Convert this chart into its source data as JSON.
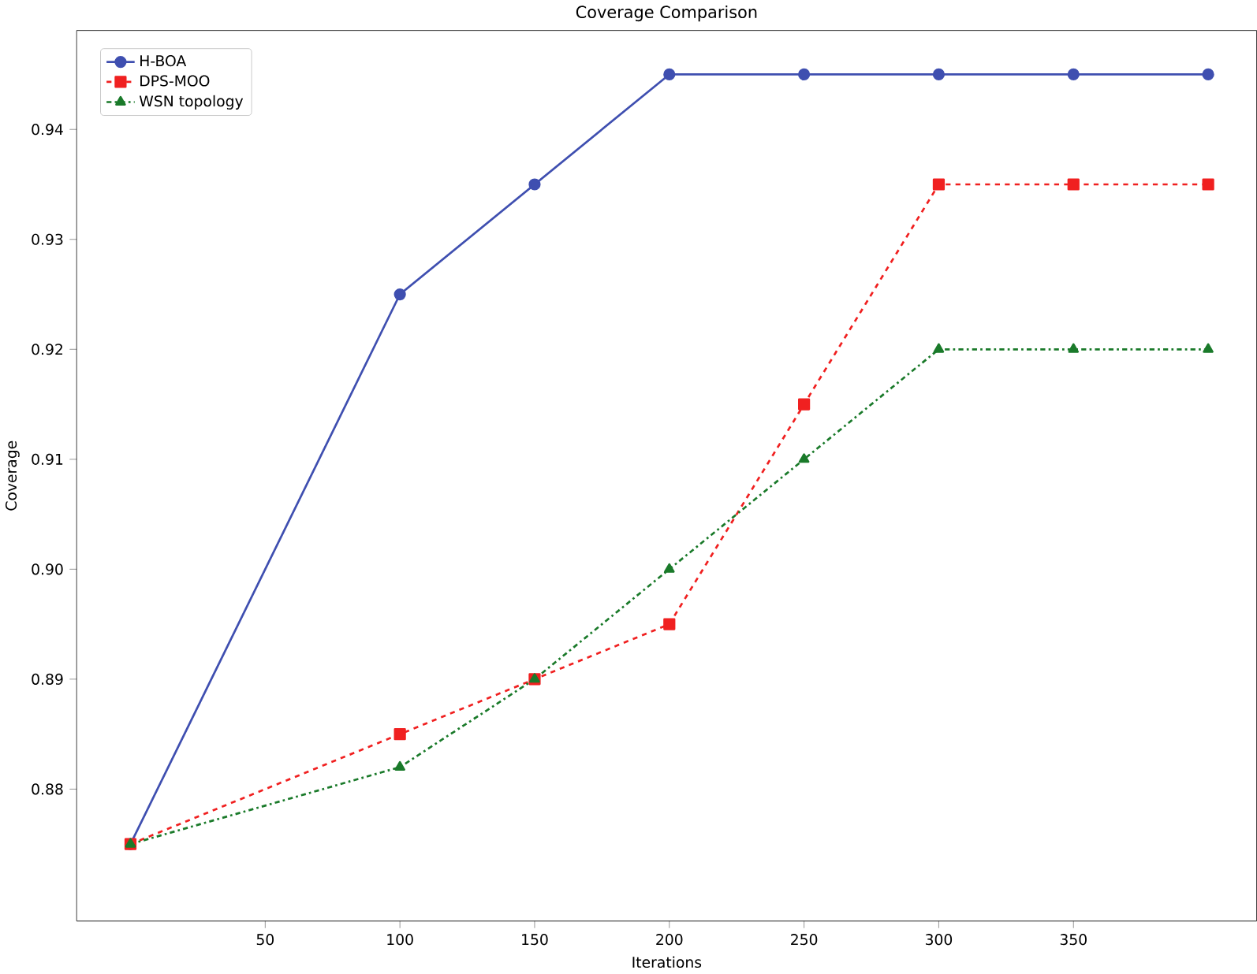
{
  "chart_data": {
    "type": "line",
    "title": "Coverage Comparison",
    "xlabel": "Iterations",
    "ylabel": "Coverage",
    "x": [
      0,
      100,
      150,
      200,
      250,
      300,
      350,
      400
    ],
    "series": [
      {
        "name": "H-BOA",
        "color": "#3f4fb0",
        "marker": "circle",
        "line_style": "solid",
        "values": [
          0.875,
          0.925,
          0.935,
          0.945,
          0.945,
          0.945,
          0.945,
          0.945
        ]
      },
      {
        "name": "DPS-MOO",
        "color": "#f02020",
        "marker": "square",
        "line_style": "dashed",
        "values": [
          0.875,
          0.885,
          0.89,
          0.895,
          0.915,
          0.935,
          0.935,
          0.935
        ]
      },
      {
        "name": "WSN topology",
        "color": "#1a7a2a",
        "marker": "triangle",
        "line_style": "dashdot",
        "values": [
          0.875,
          0.882,
          0.89,
          0.9,
          0.91,
          0.92,
          0.92,
          0.92
        ]
      }
    ],
    "xlim": [
      -20,
      418
    ],
    "ylim": [
      0.868,
      0.949
    ],
    "xticks": [
      50,
      100,
      150,
      200,
      250,
      300,
      350
    ],
    "yticks": [
      0.88,
      0.89,
      {
        "value": 0.9,
        "label": "0.90"
      },
      0.91,
      0.92,
      0.93,
      0.94
    ],
    "grid": false,
    "legend": "top left"
  }
}
